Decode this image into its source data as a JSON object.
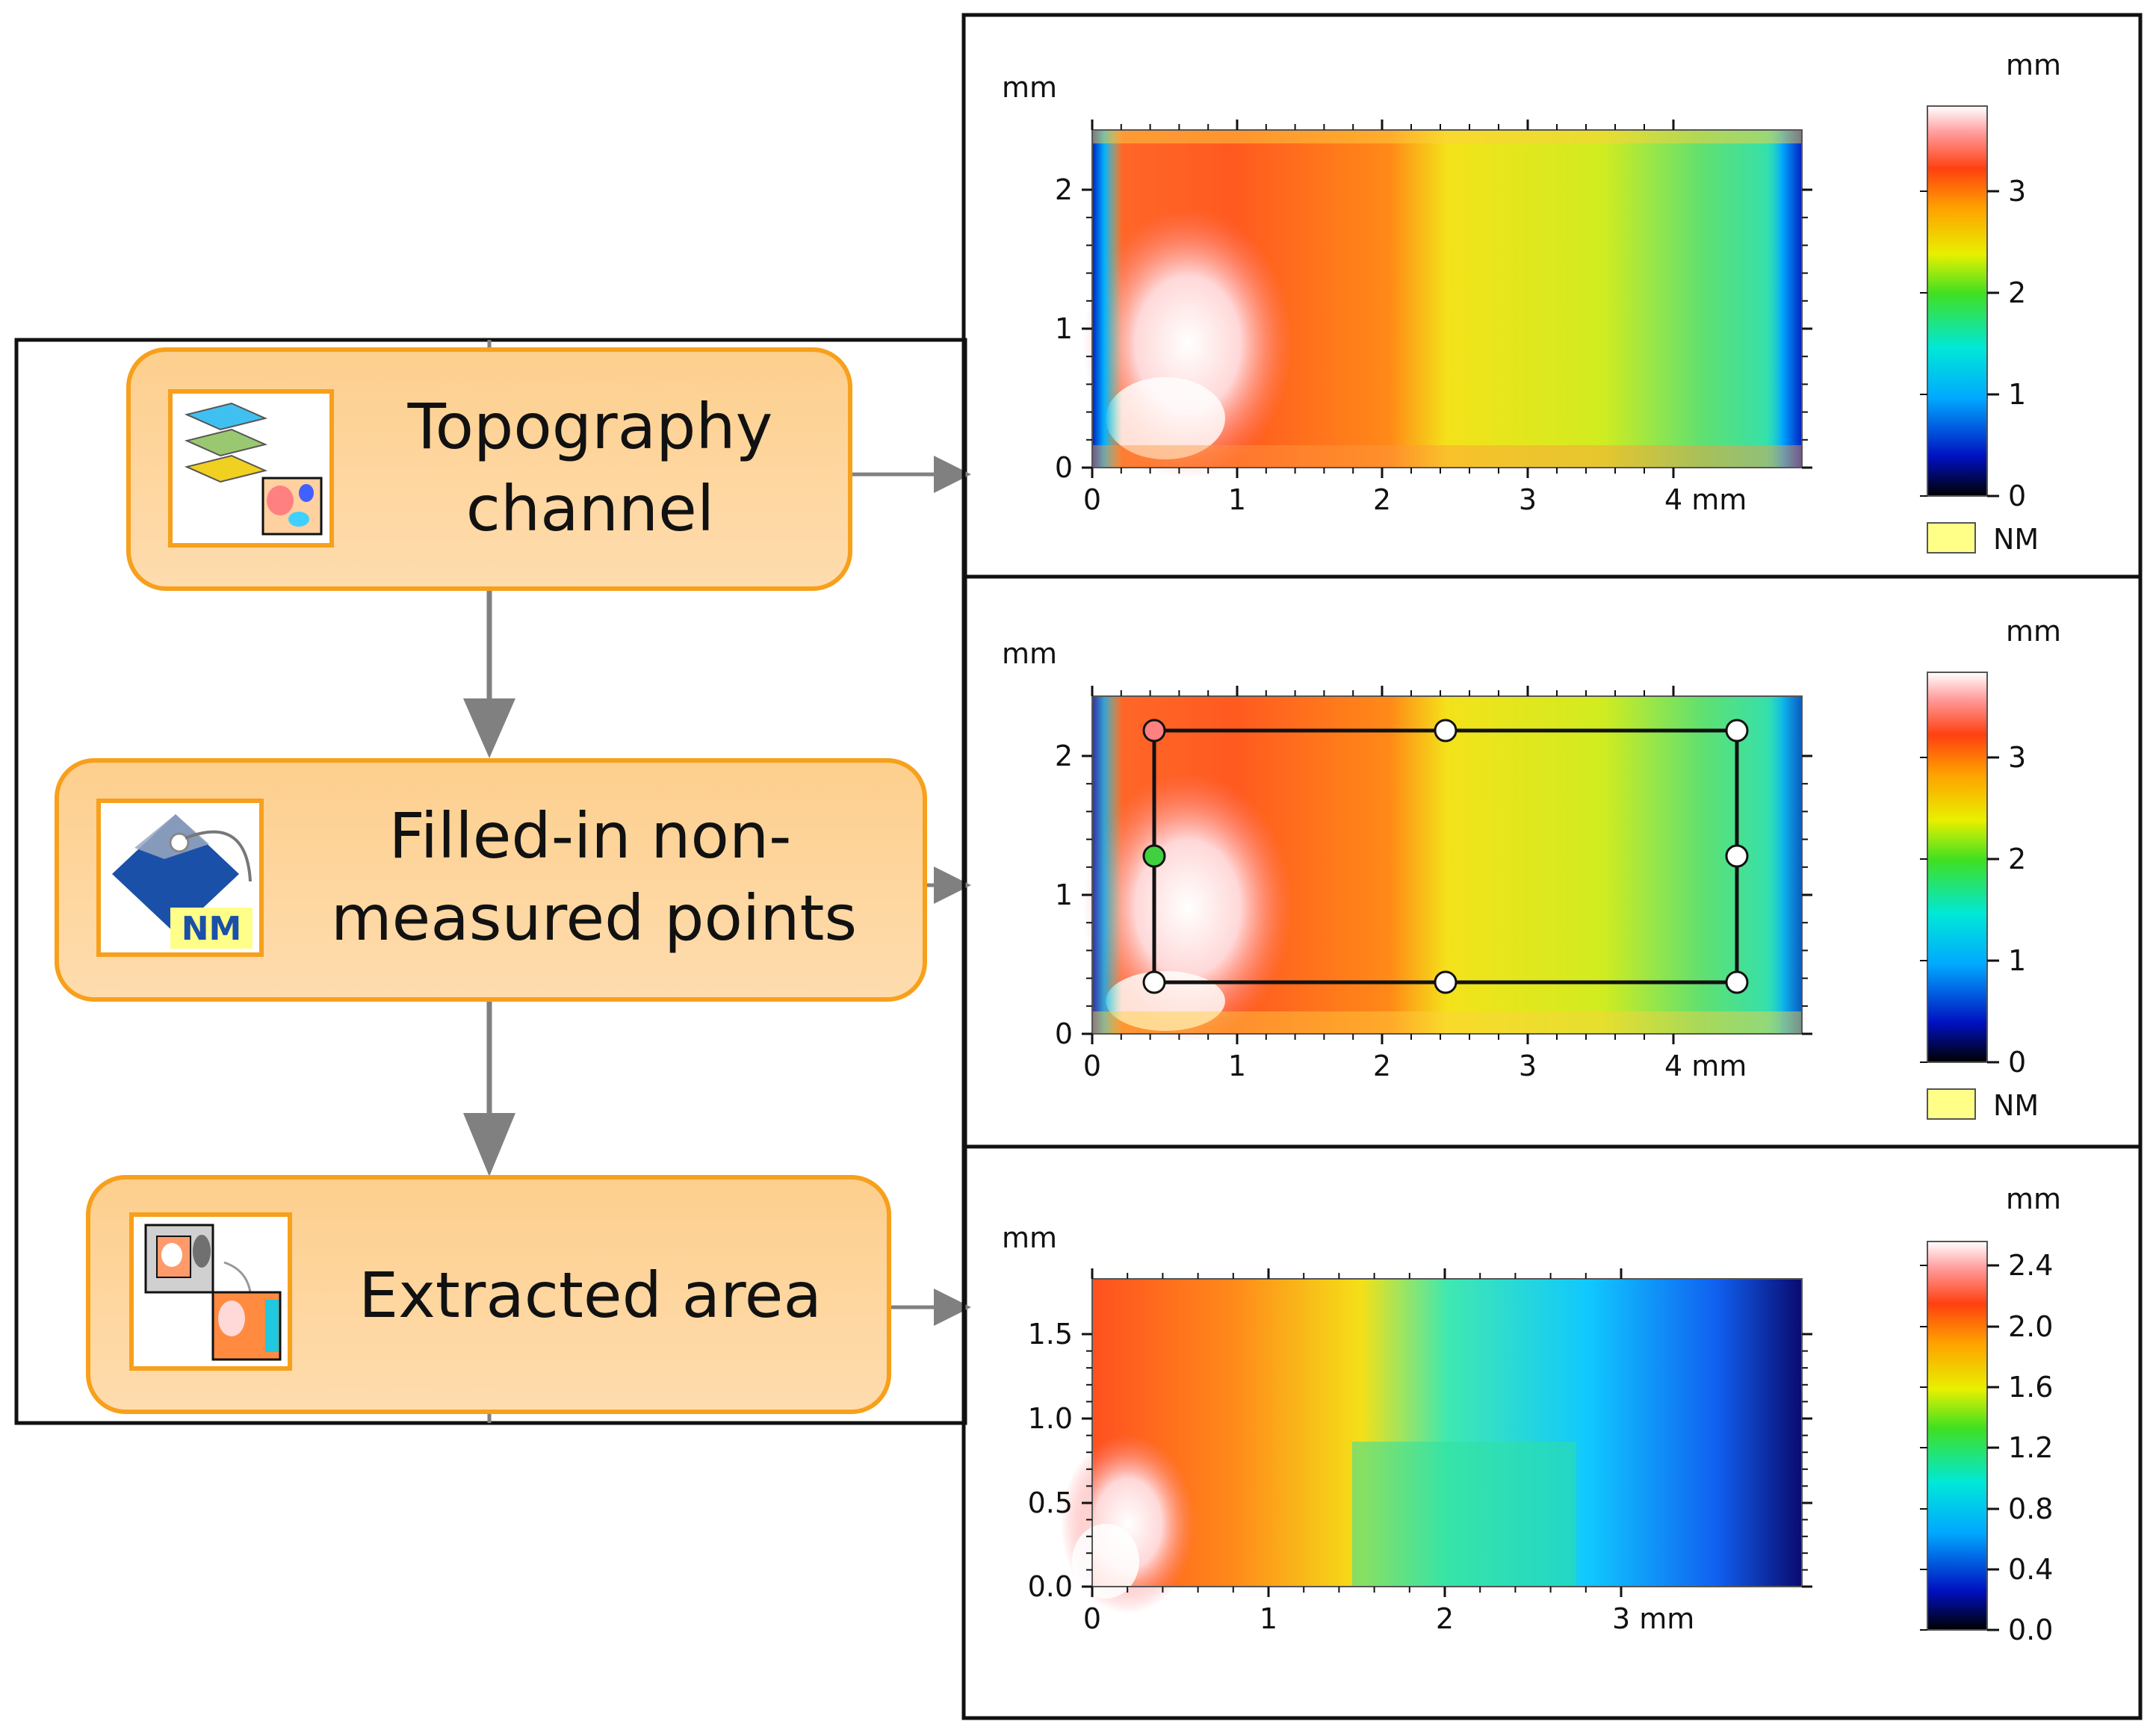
{
  "steps": [
    {
      "title_line1": "Topography",
      "title_line2": "channel",
      "icon": "layers-icon"
    },
    {
      "title_line1": "Filled-in non-",
      "title_line2": "measured points",
      "icon": "nm-tag-icon",
      "icon_badge": "NM"
    },
    {
      "title_line1": "Extracted area",
      "icon": "extract-area-icon"
    }
  ],
  "colors": {
    "node_fill": "#fdd39a",
    "node_border": "#f7a01c",
    "icon_border": "#f7a01c",
    "arrow": "#808080",
    "frame": "#111111"
  },
  "panels": [
    {
      "y_unit": "mm",
      "x_unit_suffix": "mm",
      "colorbar_unit": "mm",
      "x_ticks": [
        "0",
        "1",
        "2",
        "3",
        "4 mm"
      ],
      "y_ticks": [
        "0",
        "1",
        "2"
      ],
      "colorbar_ticks": [
        "0",
        "1",
        "2",
        "3"
      ],
      "legend_label": "NM",
      "legend_color": "#ffff88"
    },
    {
      "y_unit": "mm",
      "x_unit_suffix": "mm",
      "colorbar_unit": "mm",
      "x_ticks": [
        "0",
        "1",
        "2",
        "3",
        "4 mm"
      ],
      "y_ticks": [
        "0",
        "1",
        "2"
      ],
      "colorbar_ticks": [
        "0",
        "1",
        "2",
        "3"
      ],
      "legend_label": "NM",
      "legend_color": "#ffff88"
    },
    {
      "y_unit": "mm",
      "colorbar_unit": "mm",
      "x_ticks": [
        "0",
        "1",
        "2",
        "3 mm"
      ],
      "y_ticks": [
        "0.0",
        "0.5",
        "1.0",
        "1.5"
      ],
      "colorbar_ticks": [
        "0.0",
        "0.4",
        "0.8",
        "1.2",
        "1.6",
        "2.0",
        "2.4"
      ]
    }
  ]
}
